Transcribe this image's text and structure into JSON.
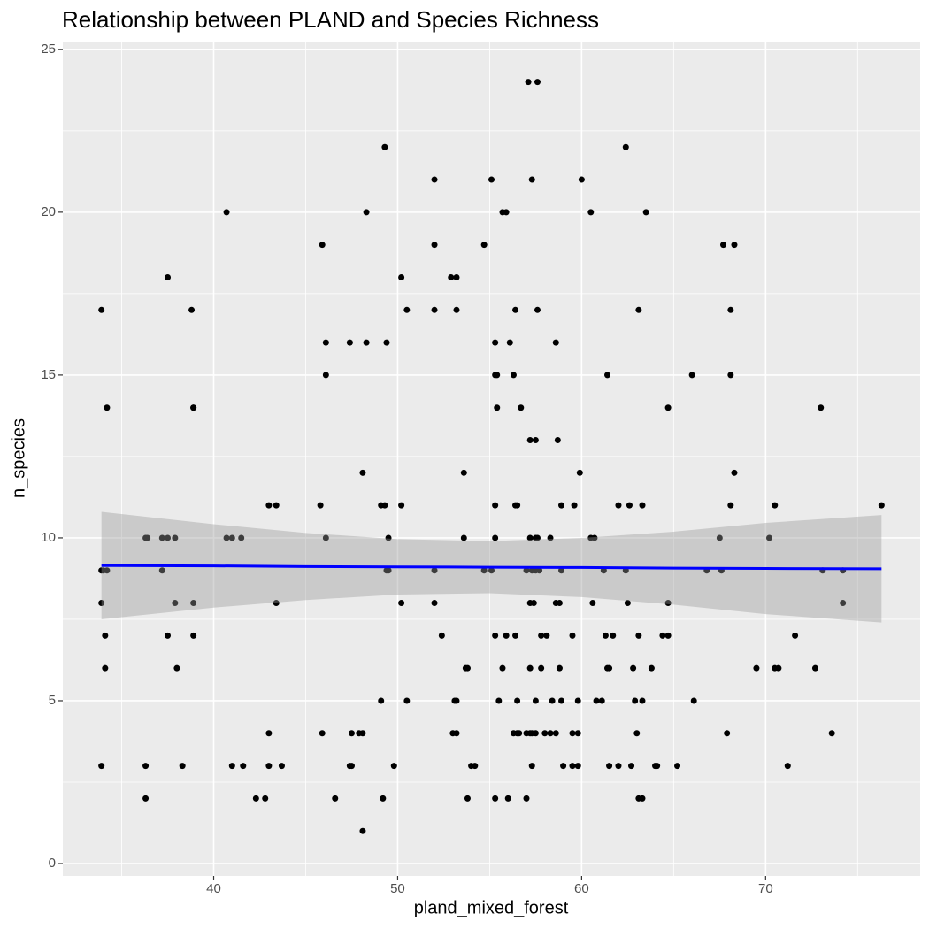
{
  "chart_data": {
    "type": "scatter",
    "title": "Relationship between PLAND and Species Richness",
    "x_label": "pland_mixed_forest",
    "y_label": "n_species",
    "xlim": [
      31.8,
      78.4
    ],
    "ylim": [
      -0.38,
      25.24
    ],
    "xticks": [
      40,
      50,
      60,
      70
    ],
    "yticks": [
      0,
      5,
      10,
      15,
      20,
      25
    ],
    "grid": true,
    "points": {
      "color": "#000000",
      "x": [
        33.9,
        33.9,
        33.9,
        33.9,
        34.0,
        34.2,
        34.1,
        34.1,
        34.2,
        36.3,
        36.4,
        36.3,
        36.3,
        37.5,
        37.2,
        37.5,
        37.9,
        37.2,
        37.5,
        37.9,
        38.0,
        38.3,
        38.8,
        38.9,
        38.9,
        38.9,
        38.9,
        40.7,
        40.7,
        41.0,
        41.5,
        41.0,
        41.6,
        42.3,
        42.8,
        43.0,
        43.0,
        43.0,
        43.4,
        43.4,
        43.7,
        45.9,
        46.1,
        45.8,
        46.1,
        45.9,
        46.6,
        46.1,
        47.4,
        47.5,
        47.4,
        47.5,
        47.9,
        48.1,
        48.1,
        48.3,
        48.3,
        48.1,
        49.3,
        49.4,
        49.1,
        49.3,
        49.4,
        49.5,
        49.5,
        49.1,
        49.2,
        49.8,
        50.2,
        50.5,
        50.2,
        50.2,
        50.5,
        52.0,
        52.0,
        52.0,
        52.0,
        52.0,
        52.4,
        52.9,
        53.2,
        53.2,
        53.1,
        53.2,
        53.0,
        53.2,
        53.6,
        53.6,
        53.7,
        53.8,
        53.8,
        54.0,
        54.2,
        54.7,
        55.1,
        54.7,
        55.1,
        55.3,
        55.3,
        55.4,
        55.4,
        55.3,
        55.3,
        55.3,
        55.5,
        55.3,
        55.7,
        55.9,
        55.7,
        55.9,
        56.0,
        56.1,
        56.3,
        56.4,
        56.5,
        56.4,
        56.4,
        56.5,
        56.3,
        56.5,
        56.6,
        56.7,
        57.1,
        57.6,
        57.3,
        57.6,
        57.2,
        57.5,
        57.2,
        57.5,
        57.6,
        57.0,
        57.3,
        57.5,
        57.7,
        57.2,
        57.4,
        57.2,
        57.0,
        57.2,
        57.3,
        57.5,
        57.3,
        57.0,
        57.5,
        57.8,
        57.8,
        58.3,
        58.0,
        58.3,
        58.1,
        58.4,
        58.6,
        58.7,
        58.6,
        58.6,
        58.8,
        58.9,
        58.9,
        58.9,
        58.8,
        59.0,
        59.6,
        59.5,
        59.5,
        59.8,
        59.5,
        59.8,
        59.8,
        59.9,
        60.0,
        60.5,
        60.5,
        60.7,
        60.6,
        60.8,
        61.1,
        61.2,
        61.3,
        61.4,
        61.5,
        61.4,
        61.7,
        61.5,
        62.0,
        62.0,
        62.4,
        62.4,
        62.5,
        62.6,
        62.7,
        62.8,
        62.9,
        63.0,
        63.1,
        63.1,
        63.3,
        63.1,
        63.3,
        63.3,
        63.5,
        63.8,
        64.0,
        64.1,
        64.4,
        64.7,
        64.7,
        64.7,
        65.2,
        66.0,
        66.1,
        66.8,
        67.5,
        67.6,
        67.7,
        67.9,
        68.1,
        68.1,
        68.1,
        68.3,
        68.3,
        69.5,
        70.2,
        70.5,
        70.7,
        70.5,
        71.2,
        71.6,
        72.7,
        73.0,
        73.1,
        73.6,
        74.2,
        74.2,
        76.3
      ],
      "y": [
        17,
        9,
        8,
        3,
        9,
        14,
        7,
        6,
        9,
        10,
        10,
        3,
        2,
        18,
        10,
        10,
        10,
        9,
        7,
        8,
        6,
        3,
        17,
        14,
        14,
        8,
        7,
        20,
        10,
        10,
        10,
        3,
        3,
        2,
        2,
        4,
        3,
        11,
        11,
        8,
        3,
        19,
        15,
        11,
        10,
        4,
        2,
        16,
        16,
        4,
        3,
        3,
        4,
        4,
        12,
        20,
        16,
        1,
        22,
        16,
        11,
        11,
        9,
        9,
        10,
        5,
        2,
        3,
        18,
        17,
        11,
        8,
        5,
        21,
        19,
        17,
        9,
        8,
        7,
        18,
        18,
        17,
        5,
        5,
        4,
        4,
        12,
        10,
        6,
        6,
        2,
        3,
        3,
        19,
        21,
        9,
        9,
        16,
        15,
        15,
        14,
        11,
        10,
        7,
        5,
        2,
        20,
        20,
        6,
        7,
        2,
        16,
        15,
        11,
        11,
        17,
        7,
        5,
        4,
        4,
        4,
        14,
        24,
        24,
        21,
        17,
        13,
        13,
        10,
        10,
        10,
        9,
        9,
        9,
        9,
        8,
        8,
        6,
        4,
        4,
        4,
        4,
        3,
        2,
        5,
        7,
        6,
        10,
        4,
        4,
        7,
        5,
        4,
        13,
        16,
        8,
        8,
        9,
        11,
        5,
        6,
        3,
        11,
        7,
        4,
        4,
        3,
        3,
        5,
        12,
        21,
        20,
        10,
        10,
        8,
        5,
        5,
        9,
        7,
        6,
        6,
        15,
        7,
        3,
        3,
        11,
        22,
        9,
        8,
        11,
        3,
        6,
        5,
        4,
        7,
        2,
        2,
        17,
        11,
        5,
        20,
        6,
        3,
        3,
        7,
        7,
        14,
        8,
        3,
        15,
        5,
        9,
        10,
        9,
        19,
        4,
        17,
        15,
        11,
        12,
        19,
        6,
        10,
        6,
        6,
        11,
        3,
        7,
        6,
        14,
        9,
        4,
        9,
        8,
        11
      ]
    },
    "smooth": {
      "color": "#0000ff",
      "band_color": "#999999",
      "x": [
        33.9,
        40,
        45,
        50,
        55,
        60,
        65,
        70,
        76.3
      ],
      "fit": [
        9.15,
        9.14,
        9.12,
        9.11,
        9.1,
        9.09,
        9.07,
        9.06,
        9.05
      ],
      "lower": [
        7.5,
        7.86,
        8.09,
        8.26,
        8.3,
        8.18,
        7.95,
        7.66,
        7.4
      ],
      "upper": [
        10.8,
        10.42,
        10.15,
        9.96,
        9.9,
        10.0,
        10.19,
        10.46,
        10.7
      ]
    }
  }
}
